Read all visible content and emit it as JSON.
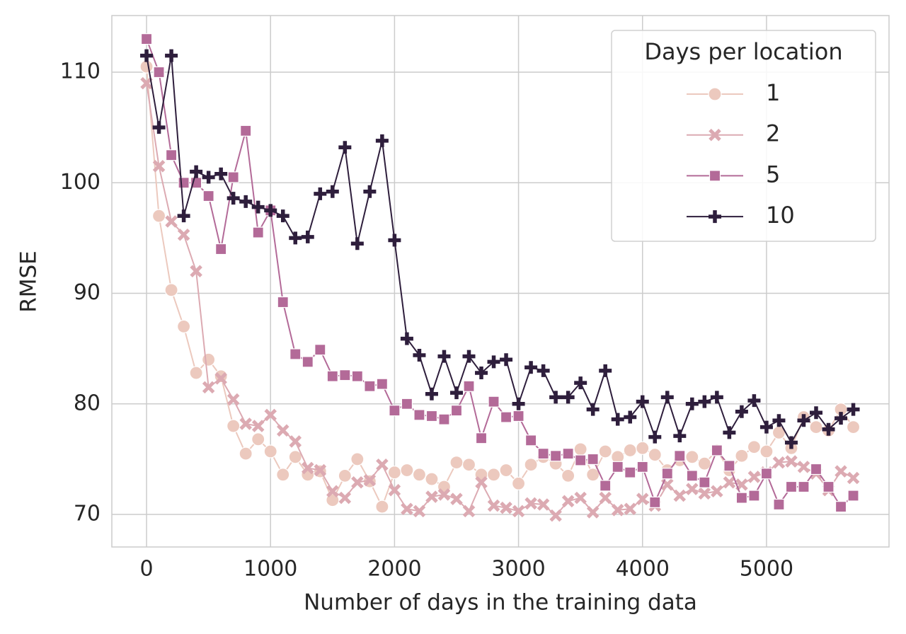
{
  "chart_data": {
    "type": "line",
    "xlabel": "Number of days in the training data",
    "ylabel": "RMSE",
    "legend_title": "Days per location",
    "legend_loc": "upper right",
    "grid": true,
    "xlim": [
      -280,
      5988
    ],
    "ylim": [
      67.06,
      115.12
    ],
    "xticks": [
      0,
      1000,
      2000,
      3000,
      4000,
      5000
    ],
    "yticks": [
      70,
      80,
      90,
      100,
      110
    ],
    "x": [
      0,
      100,
      200,
      300,
      400,
      500,
      600,
      700,
      800,
      900,
      1000,
      1100,
      1200,
      1300,
      1400,
      1500,
      1600,
      1700,
      1800,
      1900,
      2000,
      2100,
      2200,
      2300,
      2400,
      2500,
      2600,
      2700,
      2800,
      2900,
      3000,
      3100,
      3200,
      3300,
      3400,
      3500,
      3600,
      3700,
      3800,
      3900,
      4000,
      4100,
      4200,
      4300,
      4400,
      4500,
      4600,
      4700,
      4800,
      4900,
      5000,
      5100,
      5200,
      5300,
      5400,
      5500,
      5600,
      5700
    ],
    "series": [
      {
        "name": "1",
        "color": "#ecc9be",
        "marker": "circle",
        "values": [
          110.5,
          97,
          90.3,
          87,
          82.8,
          84,
          82.5,
          78,
          75.5,
          76.8,
          75.7,
          73.6,
          75.2,
          73.6,
          73.9,
          71.3,
          73.5,
          75,
          73,
          70.7,
          73.8,
          74,
          73.6,
          73.2,
          72.5,
          74.7,
          74.5,
          73.6,
          73.6,
          74,
          72.8,
          74.5,
          75.2,
          74.6,
          73.5,
          75.9,
          73.6,
          75.7,
          75.2,
          75.8,
          76,
          75.4,
          74,
          74.9,
          75.2,
          74.6,
          75.8,
          74,
          75.3,
          76.1,
          75.7,
          77.4,
          76,
          78.8,
          77.9,
          77.6,
          79.5,
          77.9
        ]
      },
      {
        "name": "2",
        "color": "#dcaab2",
        "marker": "x",
        "values": [
          109,
          101.5,
          96.5,
          95.3,
          92,
          81.5,
          82.3,
          80.4,
          78.2,
          78,
          79,
          77.6,
          76.6,
          74.2,
          74,
          72.1,
          71.5,
          72.9,
          73.1,
          74.5,
          72.2,
          70.5,
          70.3,
          71.6,
          71.8,
          71.4,
          70.3,
          72.9,
          70.8,
          70.6,
          70.3,
          71,
          70.9,
          69.9,
          71.2,
          71.5,
          70.2,
          71.5,
          70.4,
          70.5,
          71.4,
          70.8,
          72.7,
          71.7,
          72.3,
          71.9,
          72.1,
          72.9,
          72.7,
          73.4,
          73.8,
          74.7,
          74.8,
          74.3,
          73.7,
          72.2,
          73.9,
          73.3
        ]
      },
      {
        "name": "5",
        "color": "#b36a98",
        "marker": "square",
        "values": [
          113,
          110,
          102.5,
          100,
          100,
          98.8,
          94,
          100.5,
          104.7,
          95.5,
          97.5,
          89.2,
          84.5,
          83.8,
          84.9,
          82.5,
          82.6,
          82.5,
          81.6,
          81.8,
          79.4,
          80,
          79,
          78.9,
          78.6,
          79.4,
          81.6,
          76.9,
          80.2,
          78.8,
          78.9,
          76.7,
          75.5,
          75.3,
          75.5,
          74.9,
          75,
          72.6,
          74.3,
          73.8,
          74.3,
          71.1,
          73.7,
          75.3,
          73.5,
          72.9,
          75.8,
          74.4,
          71.5,
          71.7,
          73.7,
          70.9,
          72.5,
          72.5,
          74.1,
          72.5,
          70.7,
          71.7
        ]
      },
      {
        "name": "10",
        "color": "#2e1e3c",
        "marker": "plus",
        "values": [
          111.5,
          105,
          111.5,
          97,
          101,
          100.5,
          100.8,
          98.6,
          98.3,
          97.8,
          97.5,
          97,
          95,
          95.1,
          99,
          99.2,
          103.2,
          94.5,
          99.2,
          103.8,
          94.8,
          85.9,
          84.4,
          80.9,
          84.3,
          81,
          84.3,
          82.8,
          83.8,
          84,
          80,
          83.3,
          83,
          80.6,
          80.6,
          81.9,
          79.5,
          83,
          78.6,
          78.8,
          80.2,
          77,
          80.6,
          77.1,
          80,
          80.2,
          80.6,
          77.4,
          79.3,
          80.3,
          77.9,
          78.5,
          76.5,
          78.5,
          79.2,
          77.7,
          78.7,
          79.5
        ]
      }
    ]
  }
}
